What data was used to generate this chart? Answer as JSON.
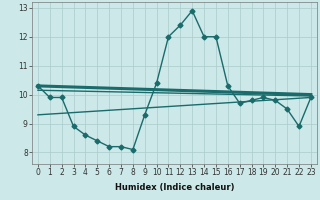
{
  "xlabel": "Humidex (Indice chaleur)",
  "bg_color": "#cce8e8",
  "line_color": "#1a6b6b",
  "grid_color": "#aacccc",
  "xlim": [
    -0.5,
    23.5
  ],
  "ylim": [
    7.6,
    13.2
  ],
  "yticks": [
    8,
    9,
    10,
    11,
    12,
    13
  ],
  "xticks": [
    0,
    1,
    2,
    3,
    4,
    5,
    6,
    7,
    8,
    9,
    10,
    11,
    12,
    13,
    14,
    15,
    16,
    17,
    18,
    19,
    20,
    21,
    22,
    23
  ],
  "series": [
    {
      "x": [
        0,
        1,
        2,
        3,
        4,
        5,
        6,
        7,
        8,
        9,
        10,
        11,
        12,
        13,
        14,
        15,
        16,
        17,
        18,
        19,
        20,
        21,
        22,
        23
      ],
      "y": [
        10.3,
        9.9,
        9.9,
        8.9,
        8.6,
        8.4,
        8.2,
        8.2,
        8.1,
        9.3,
        10.4,
        12.0,
        12.4,
        12.9,
        12.0,
        12.0,
        10.3,
        9.7,
        9.8,
        9.9,
        9.8,
        9.5,
        8.9,
        9.9
      ],
      "marker": "D",
      "linewidth": 1.0,
      "markersize": 2.5
    },
    {
      "x": [
        0,
        23
      ],
      "y": [
        10.3,
        10.0
      ],
      "marker": null,
      "linewidth": 2.2,
      "markersize": 0
    },
    {
      "x": [
        0,
        23
      ],
      "y": [
        9.3,
        9.9
      ],
      "marker": null,
      "linewidth": 1.0,
      "markersize": 0
    },
    {
      "x": [
        0,
        23
      ],
      "y": [
        10.15,
        9.95
      ],
      "marker": null,
      "linewidth": 1.0,
      "markersize": 0
    }
  ],
  "tick_fontsize": 5.5,
  "xlabel_fontsize": 6.0
}
